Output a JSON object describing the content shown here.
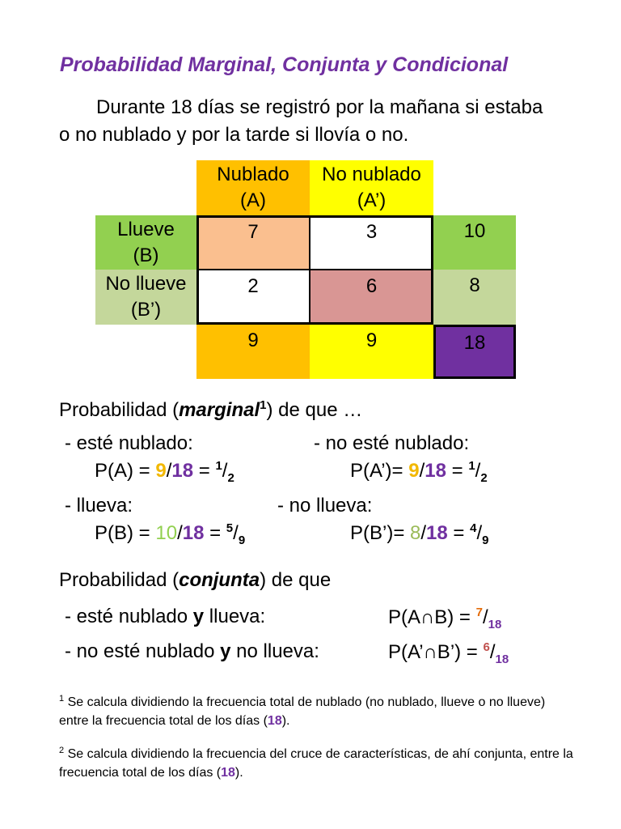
{
  "title": "Probabilidad Marginal, Conjunta y Condicional",
  "intro": "Durante 18 días se registró por la mañana si estaba o no nublado y por la tarde si llovía o no.",
  "table": {
    "col_headers": [
      [
        "Nublado",
        "(A)"
      ],
      [
        "No nublado",
        "(A’)"
      ]
    ],
    "row_headers": [
      [
        "Llueve",
        "(B)"
      ],
      [
        "No llueve",
        "(B’)"
      ]
    ],
    "cells": [
      [
        7,
        3
      ],
      [
        2,
        6
      ]
    ],
    "row_totals": [
      10,
      8
    ],
    "col_totals": [
      9,
      9
    ],
    "total": 18
  },
  "marginal": {
    "heading": [
      {
        "t": "Probabilidad ("
      },
      {
        "t": "marginal",
        "s": "bi"
      },
      {
        "t": "1",
        "s": "sup"
      },
      {
        "t": ") de que …"
      }
    ],
    "items": [
      {
        "label": [
          {
            "t": "- esté nublado:"
          }
        ],
        "formula": [
          {
            "t": "P(A) = "
          },
          {
            "t": "9",
            "s": "y"
          },
          {
            "t": "/"
          },
          {
            "t": "18",
            "s": "p"
          },
          {
            "t": " = "
          },
          {
            "t": "1",
            "s": "sup"
          },
          {
            "t": "/"
          },
          {
            "t": "2",
            "s": "sub"
          }
        ]
      },
      {
        "label": [
          {
            "t": "- no esté nublado:"
          }
        ],
        "formula": [
          {
            "t": "P(A’)= "
          },
          {
            "t": "9",
            "s": "y"
          },
          {
            "t": "/"
          },
          {
            "t": "18",
            "s": "p"
          },
          {
            "t": " = "
          },
          {
            "t": "1",
            "s": "sup"
          },
          {
            "t": "/"
          },
          {
            "t": "2",
            "s": "sub"
          }
        ]
      },
      {
        "label": [
          {
            "t": "- llueva:"
          }
        ],
        "formula": [
          {
            "t": "P(B) = "
          },
          {
            "t": "10",
            "s": "g"
          },
          {
            "t": "/"
          },
          {
            "t": "18",
            "s": "p"
          },
          {
            "t": " = "
          },
          {
            "t": "5",
            "s": "sup"
          },
          {
            "t": "/"
          },
          {
            "t": "9",
            "s": "sub"
          }
        ]
      },
      {
        "label": [
          {
            "t": "- no llueva:"
          }
        ],
        "formula": [
          {
            "t": "P(B’)=  "
          },
          {
            "t": "8",
            "s": "lg"
          },
          {
            "t": "/"
          },
          {
            "t": "18",
            "s": "p"
          },
          {
            "t": " = "
          },
          {
            "t": "4",
            "s": "sup"
          },
          {
            "t": "/"
          },
          {
            "t": "9",
            "s": "sub"
          }
        ]
      }
    ]
  },
  "conjunta": {
    "heading": [
      {
        "t": "Probabilidad ("
      },
      {
        "t": "conjunta",
        "s": "bi"
      },
      {
        "t": ") de que"
      }
    ],
    "items": [
      {
        "label": [
          {
            "t": "- esté nublado "
          },
          {
            "t": "y",
            "s": "b"
          },
          {
            "t": " llueva:"
          }
        ],
        "formula": [
          {
            "t": "P(A∩B) = "
          },
          {
            "t": "7",
            "s": "supo"
          },
          {
            "t": "/"
          },
          {
            "t": "18",
            "s": "subp"
          }
        ]
      },
      {
        "label": [
          {
            "t": "- no esté nublado "
          },
          {
            "t": "y",
            "s": "b"
          },
          {
            "t": " no llueva:"
          }
        ],
        "formula": [
          {
            "t": "P(A’∩B’) = "
          },
          {
            "t": "6",
            "s": "supr"
          },
          {
            "t": "/"
          },
          {
            "t": "18",
            "s": "subp"
          }
        ]
      }
    ]
  },
  "footnotes": [
    {
      "mark": "1",
      "text": [
        {
          "t": " Se calcula dividiendo la frecuencia total de nublado (no nublado, llueve o no llueve) entre la frecuencia total de los días ("
        },
        {
          "t": "18",
          "s": "p"
        },
        {
          "t": ")."
        }
      ]
    },
    {
      "mark": "2",
      "text": [
        {
          "t": " Se calcula dividiendo la frecuencia del cruce de características, de ahí conjunta, entre la frecuencia total de los días ("
        },
        {
          "t": "18",
          "s": "p"
        },
        {
          "t": ")."
        }
      ]
    }
  ]
}
